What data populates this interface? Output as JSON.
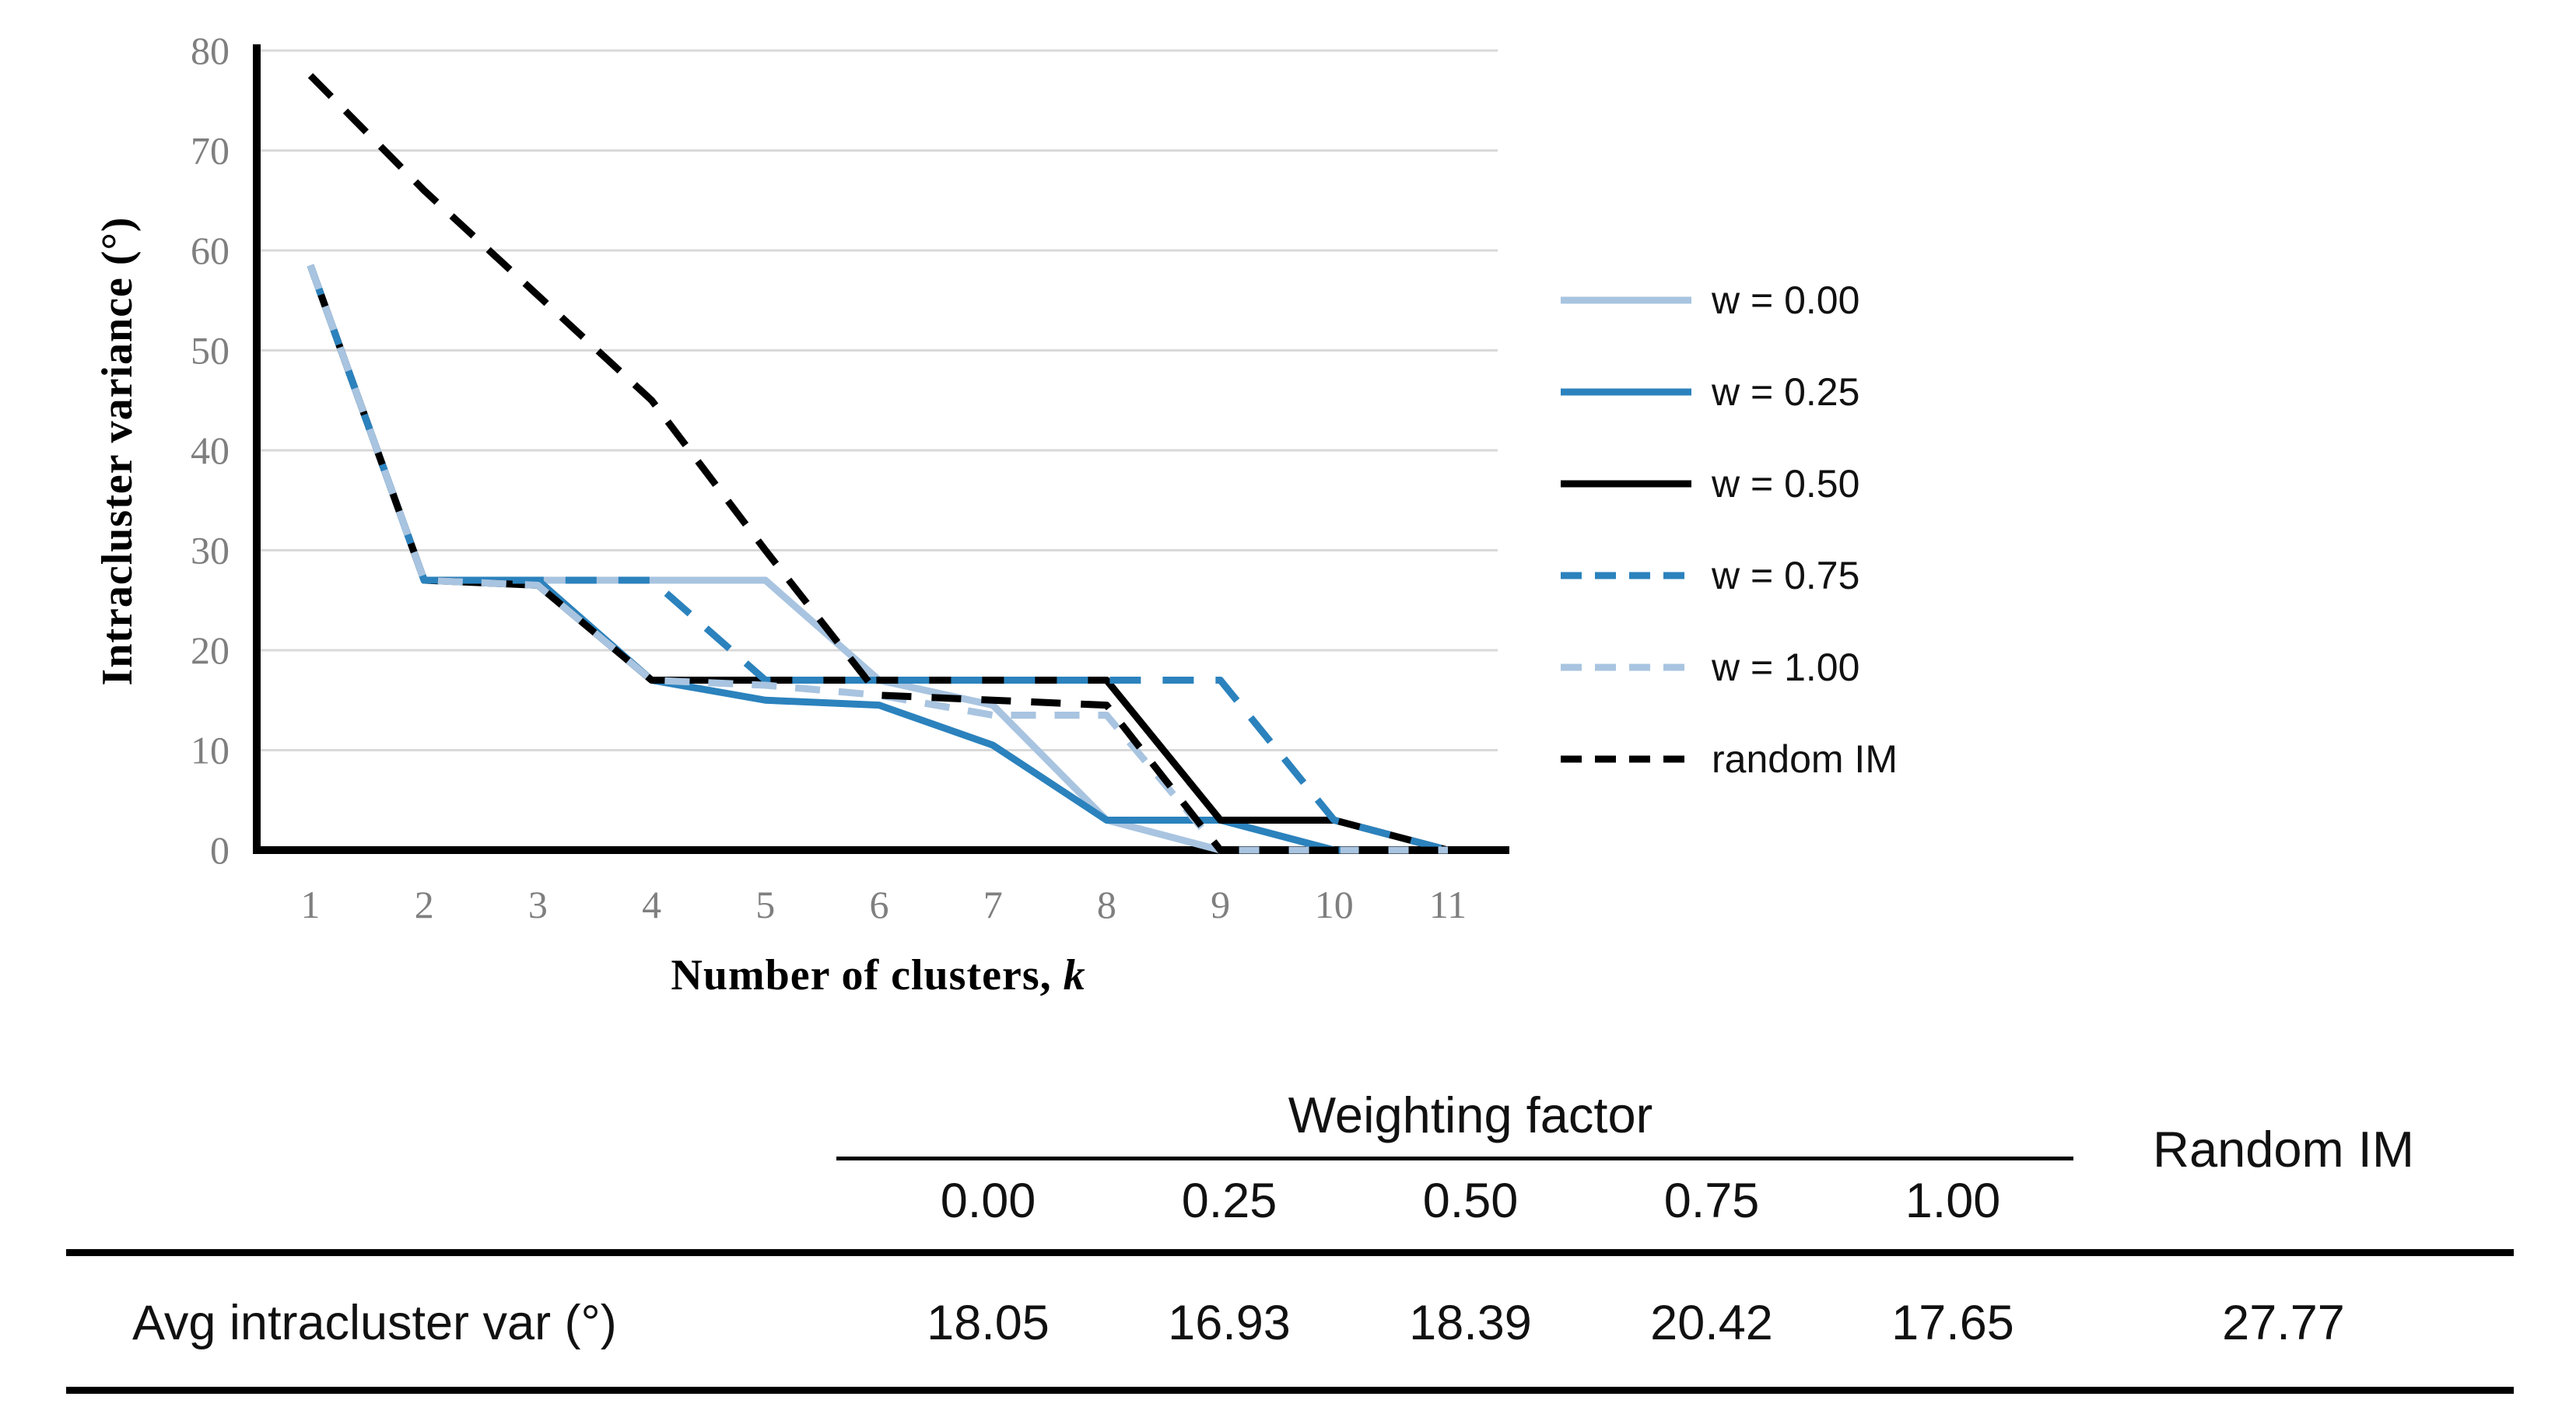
{
  "chart": {
    "ylabel": "Intracluster variance (°)",
    "xlabel_prefix": "Number of clusters, ",
    "xlabel_italic": "k"
  },
  "chart_data": {
    "type": "line",
    "title": "",
    "xlabel": "Number of clusters, k",
    "ylabel": "Intracluster variance (°)",
    "x": [
      1,
      2,
      3,
      4,
      5,
      6,
      7,
      8,
      9,
      10,
      11
    ],
    "ylim": [
      0,
      80
    ],
    "ytick_step": 10,
    "yticks": [
      0,
      10,
      20,
      30,
      40,
      50,
      60,
      70,
      80
    ],
    "grid": true,
    "legend_position": "right",
    "series": [
      {
        "name": "w = 0.00",
        "color": "#a8c4e0",
        "style": "solid",
        "values": [
          58.5,
          27,
          27,
          27,
          27,
          17,
          14.5,
          3,
          0,
          0,
          0
        ]
      },
      {
        "name": "w = 0.25",
        "color": "#2b82bd",
        "style": "solid",
        "values": [
          58.5,
          27,
          27,
          17,
          15,
          14.5,
          10.5,
          3,
          3,
          0,
          0
        ]
      },
      {
        "name": "w = 0.50",
        "color": "#000000",
        "style": "solid",
        "values": [
          58.5,
          27,
          26.5,
          17,
          17,
          17,
          17,
          17,
          3,
          3,
          0
        ]
      },
      {
        "name": "w = 0.75",
        "color": "#2b82bd",
        "style": "dashed",
        "values": [
          58.5,
          27,
          27,
          27,
          17,
          17,
          17,
          17,
          17,
          3,
          0
        ]
      },
      {
        "name": "w = 1.00",
        "color": "#a8c4e0",
        "style": "dashed",
        "values": [
          58.5,
          27,
          26.5,
          17,
          16.5,
          15.5,
          13.5,
          13.5,
          0,
          0,
          0
        ]
      },
      {
        "name": "random IM",
        "color": "#000000",
        "style": "dashed",
        "values": [
          77.5,
          66,
          55.5,
          45,
          30,
          15.5,
          15,
          14.5,
          0,
          0,
          0
        ]
      }
    ]
  },
  "table": {
    "group_header": "Weighting factor",
    "random_header": "Random IM",
    "col_headers": [
      "0.00",
      "0.25",
      "0.50",
      "0.75",
      "1.00"
    ],
    "row_label": "Avg intracluster var (°)",
    "values": [
      "18.05",
      "16.93",
      "18.39",
      "20.42",
      "17.65"
    ],
    "random_value": "27.77"
  },
  "colors": {
    "accent_blue": "#2b82bd",
    "light_blue": "#a8c4e0",
    "gridline": "#d9d9d9",
    "tick_text": "#7f7f7f",
    "axis": "#000000"
  }
}
